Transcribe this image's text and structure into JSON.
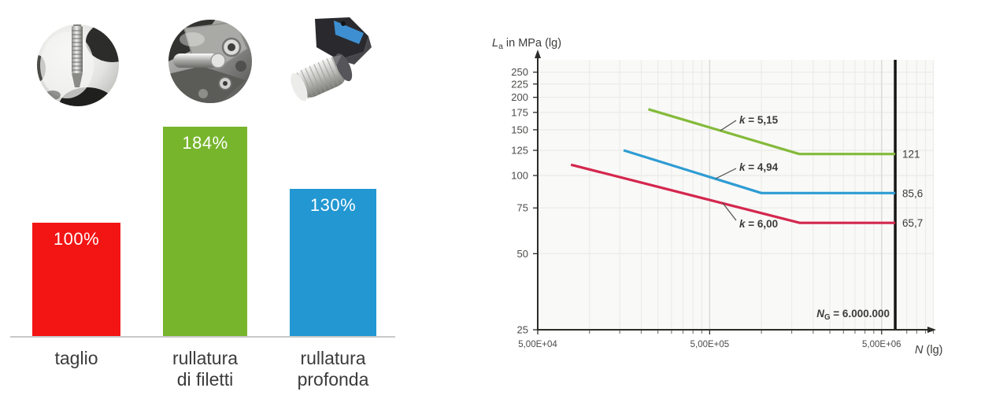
{
  "left_section": {
    "images": [
      {
        "name": "thread-cutting-tap-photo",
        "represents": "taglio"
      },
      {
        "name": "thread-rolling-head-photo",
        "represents": "rullatura di filetti"
      },
      {
        "name": "deep-rolling-tool-photo",
        "represents": "rullatura profonda"
      }
    ]
  },
  "chart_data": [
    {
      "type": "bar",
      "title": "",
      "categories": [
        "taglio",
        "rullatura di filetti",
        "rullatura profonda"
      ],
      "categories_lines": [
        [
          "taglio"
        ],
        [
          "rullatura",
          "di filetti"
        ],
        [
          "rullatura",
          "profonda"
        ]
      ],
      "values": [
        100,
        184,
        130
      ],
      "value_labels": [
        "100%",
        "184%",
        "130%"
      ],
      "colors": [
        "#f31414",
        "#77b52c",
        "#2297d2"
      ],
      "xlabel": "",
      "ylabel": "",
      "ylim": [
        0,
        200
      ],
      "grid": false,
      "value_label_color": "#ffffff"
    },
    {
      "type": "line",
      "title": "",
      "x_scale": "log",
      "y_scale": "log",
      "xlabel": {
        "var": "N",
        "rest": " (lg)"
      },
      "ylabel": {
        "var": "L",
        "sub": "a",
        "rest": " in MPa (lg)"
      },
      "xlim": [
        50000,
        10000000
      ],
      "ylim": [
        25,
        280
      ],
      "grid": true,
      "x_ticks": [
        {
          "label": "5,00E+04",
          "value": 50000
        },
        {
          "label": "5,00E+05",
          "value": 500000
        },
        {
          "label": "5,00E+06",
          "value": 5000000
        }
      ],
      "x_minor_ticks": [
        100000,
        150000,
        200000,
        250000,
        300000,
        350000,
        400000,
        450000,
        1000000,
        1500000,
        2000000,
        2500000,
        3000000,
        3500000,
        4000000,
        4500000,
        7000000,
        8000000,
        9000000,
        10000000
      ],
      "y_ticks": [
        250,
        225,
        200,
        175,
        150,
        125,
        100,
        75,
        50,
        25
      ],
      "series": [
        {
          "name": "k = 5,15",
          "color": "#84ba3a",
          "points": [
            [
              220000,
              180
            ],
            [
              1660000,
              121
            ],
            [
              6000000,
              121
            ]
          ],
          "end_label": "121",
          "k_label": {
            "var": "k",
            "rest": " = 5,15"
          }
        },
        {
          "name": "k = 4,94",
          "color": "#2e9cd3",
          "points": [
            [
              158000,
              125
            ],
            [
              1000000,
              85.6
            ],
            [
              6000000,
              85.6
            ]
          ],
          "end_label": "85,6",
          "k_label": {
            "var": "k",
            "rest": " = 4,94"
          }
        },
        {
          "name": "k = 6,00",
          "color": "#d4274e",
          "points": [
            [
              78000,
              110
            ],
            [
              1670000,
              65.7
            ],
            [
              6000000,
              65.7
            ]
          ],
          "end_label": "65,7",
          "k_label": {
            "var": "k",
            "rest": " = 6,00"
          }
        }
      ],
      "limit_line": {
        "value": 6000000,
        "color": "#161614",
        "label": {
          "var": "N",
          "sub": "G",
          "rest": " = 6.000.000"
        }
      },
      "legend": "none"
    }
  ]
}
